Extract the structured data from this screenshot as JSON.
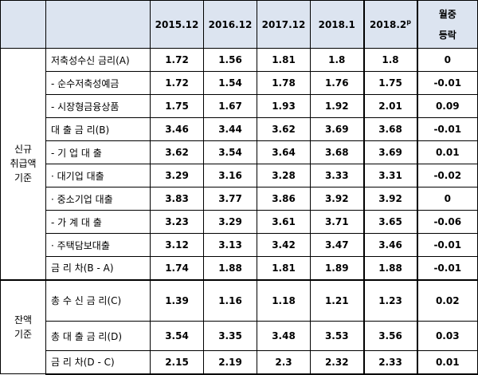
{
  "header": {
    "periods": [
      "2015.12",
      "2016.12",
      "2017.12",
      "2018.1"
    ],
    "latest_base": "2018.2",
    "latest_sup": "p",
    "change_line1": "월중",
    "change_line2": "등락"
  },
  "groups": {
    "new": [
      "신규",
      "취급액",
      "기준"
    ],
    "balance": [
      "잔액",
      "기준"
    ]
  },
  "rows": [
    {
      "label": "저축성수신 금리(A)",
      "values": [
        "1.72",
        "1.56",
        "1.81",
        "1.8",
        "1.8",
        "0"
      ]
    },
    {
      "label": "- 순수저축성예금",
      "values": [
        "1.72",
        "1.54",
        "1.78",
        "1.76",
        "1.75",
        "-0.01"
      ]
    },
    {
      "label": "- 시장형금융상품",
      "values": [
        "1.75",
        "1.67",
        "1.93",
        "1.92",
        "2.01",
        "0.09"
      ]
    },
    {
      "label": "대 출 금 리(B)",
      "values": [
        "3.46",
        "3.44",
        "3.62",
        "3.69",
        "3.68",
        "-0.01"
      ]
    },
    {
      "label": "- 기 업 대 출",
      "values": [
        "3.62",
        "3.54",
        "3.64",
        "3.68",
        "3.69",
        "0.01"
      ]
    },
    {
      "label": "· 대기업 대출",
      "values": [
        "3.29",
        "3.16",
        "3.28",
        "3.33",
        "3.31",
        "-0.02"
      ]
    },
    {
      "label": "· 중소기업 대출",
      "values": [
        "3.83",
        "3.77",
        "3.86",
        "3.92",
        "3.92",
        "0"
      ]
    },
    {
      "label": "- 가 계 대 출",
      "values": [
        "3.23",
        "3.29",
        "3.61",
        "3.71",
        "3.65",
        "-0.06"
      ]
    },
    {
      "label": "· 주택담보대출",
      "values": [
        "3.12",
        "3.13",
        "3.42",
        "3.47",
        "3.46",
        "-0.01"
      ]
    },
    {
      "label": "금 리 차(B - A)",
      "values": [
        "1.74",
        "1.88",
        "1.81",
        "1.89",
        "1.88",
        "-0.01"
      ]
    },
    {
      "label": "총 수 신 금 리(C)",
      "values": [
        "1.39",
        "1.16",
        "1.18",
        "1.21",
        "1.23",
        "0.02"
      ]
    },
    {
      "label": "총 대 출 금 리(D)",
      "values": [
        "3.54",
        "3.35",
        "3.48",
        "3.53",
        "3.56",
        "0.03"
      ]
    },
    {
      "label": "금 리 차(D - C)",
      "values": [
        "2.15",
        "2.19",
        "2.3",
        "2.32",
        "2.33",
        "0.01"
      ]
    }
  ]
}
